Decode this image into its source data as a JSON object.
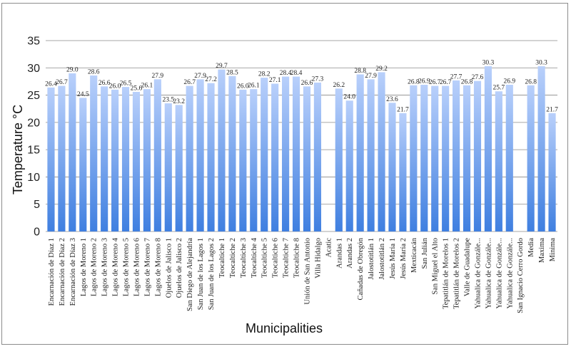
{
  "chart_data": {
    "type": "bar",
    "xlabel": "Municipalities",
    "ylabel": "Temperature °C",
    "ylim": [
      0,
      35
    ],
    "yticks": [
      "0",
      "5",
      "10",
      "15",
      "20",
      "25",
      "30",
      "35"
    ],
    "grid": true,
    "legend": "none",
    "bar_color_top": "#b9d0fb",
    "bar_color_bottom": "#3f7fe0",
    "categories": [
      "Encarnación de Díaz 1",
      "Encarnación de Díaz 2",
      "Encarnación de Díaz 3",
      "Lagos de Moreno 1",
      "Lagos de Moreno 2",
      "Lagos de Moreno 3",
      "Lagos de Moreno 4",
      "Lagos de Moreno 5",
      "Lagos de Moreno 6",
      "Lagos de Moreno 7",
      "Lagos de Moreno 8",
      "Ojuelos de Jalisco 1",
      "Ojuelos de Jalisco 2",
      "San Diego de Alejandría",
      "San Juan de los Lagos 1",
      "San Juan de los Lagos 2",
      "Teocaltiche 1",
      "Teocaltiche 2",
      "Teocaltiche 3",
      "Teocaltiche 4",
      "Teocaltiche 5",
      "Teocaltiche 6",
      "Teocaltiche 7",
      "Teocaltiche 8",
      "Unión de San Antonio",
      "Villa Hidalgo",
      "Acatic",
      "Arandas 1",
      "Arandas 2",
      "Cañadas de Obregón",
      "Jalostotitlán 1",
      "Jalostotitlán 2",
      "Jesús María 1",
      "Jesús María 2",
      "Mexticacán",
      "San Julián",
      "San Miguel el Alto",
      "Tepatitlán de Morelos 1",
      "Tepatitlán de Morelos 2",
      "Valle de Guadalupe",
      "Yahualica de Gonzále...",
      "Yahualica de Gonzále...",
      "Yahualica de Gonzále...",
      "Yahualica de Gonzále...",
      "San Ignacio Cerro Gordo",
      "Media",
      "Maxima",
      "Minima"
    ],
    "values": [
      26.4,
      26.7,
      29.0,
      24.5,
      28.6,
      26.6,
      26.0,
      26.5,
      25.6,
      26.1,
      27.9,
      23.5,
      23.2,
      26.7,
      27.9,
      27.2,
      29.7,
      28.5,
      26.0,
      26.1,
      28.2,
      27.1,
      28.4,
      28.4,
      26.6,
      27.3,
      null,
      26.2,
      24.0,
      28.8,
      27.9,
      29.2,
      23.6,
      21.7,
      26.8,
      26.9,
      26.7,
      26.7,
      27.7,
      26.8,
      27.6,
      30.3,
      25.7,
      26.9,
      null,
      26.8,
      30.3,
      21.7
    ],
    "data_labels": [
      "26.4",
      "26.7",
      "29.0",
      "24.5",
      "28.6",
      "26.6",
      "26.0",
      "26.5",
      "25.6",
      "26.1",
      "27.9",
      "23.5",
      "23.2",
      "26.7",
      "27.9",
      "27.2",
      "29.7",
      "28.5",
      "26.0",
      "26.1",
      "28.2",
      "27.1",
      "28.4",
      "28.4",
      "26.6",
      "27.3",
      "",
      "26.2",
      "24.0",
      "28.8",
      "27.9",
      "29.2",
      "23.6",
      "21.7",
      "26.8",
      "26.9",
      "26.7",
      "26.7",
      "27.7",
      "26.8",
      "27.6",
      "30.3",
      "25.7",
      "26.9",
      "",
      "26.8",
      "30.3",
      "21.7"
    ]
  }
}
